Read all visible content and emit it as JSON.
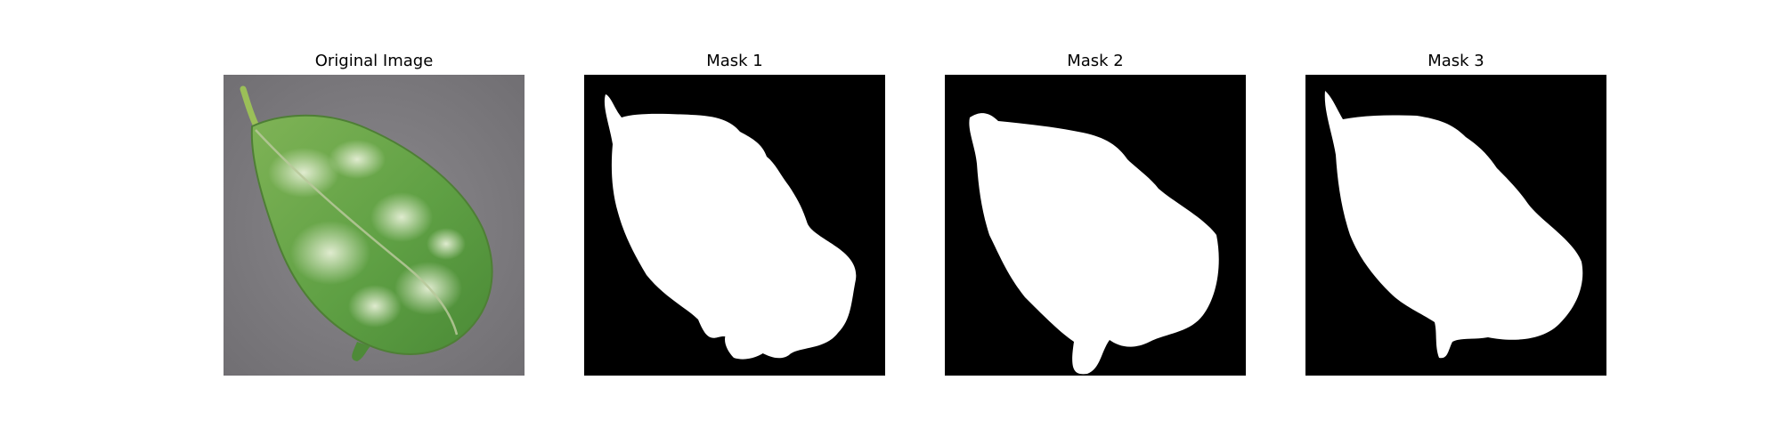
{
  "figure": {
    "panels": [
      {
        "title": "Original Image"
      },
      {
        "title": "Mask 1"
      },
      {
        "title": "Mask 2"
      },
      {
        "title": "Mask 3"
      }
    ]
  },
  "colors": {
    "background": "#7c7a7e",
    "leaf_green": "#5fa044",
    "leaf_pale": "#cfe2b2",
    "mask_background": "#000000",
    "mask_foreground": "#ffffff"
  }
}
